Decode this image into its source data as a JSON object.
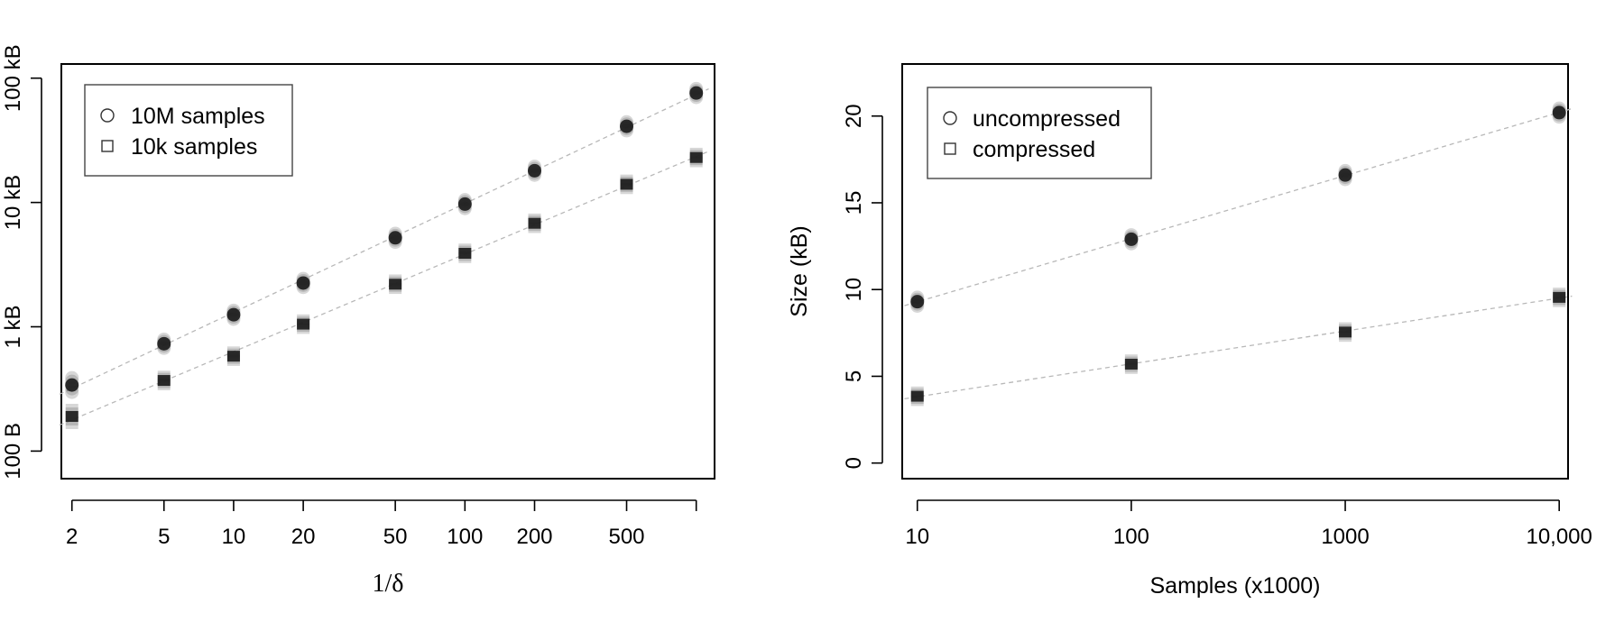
{
  "chart_data": [
    {
      "type": "scatter",
      "title": "",
      "xlabel": "1/δ",
      "ylabel": "",
      "x_scale": "log",
      "y_scale": "log",
      "xlim": [
        1.8,
        1200
      ],
      "ylim": [
        60,
        130000
      ],
      "x_ticks": [
        {
          "value": 2,
          "label": "2"
        },
        {
          "value": 5,
          "label": "5"
        },
        {
          "value": 10,
          "label": "10"
        },
        {
          "value": 20,
          "label": "20"
        },
        {
          "value": 50,
          "label": "50"
        },
        {
          "value": 100,
          "label": "100"
        },
        {
          "value": 200,
          "label": "200"
        },
        {
          "value": 500,
          "label": "500"
        },
        {
          "value": 1000,
          "label": ""
        }
      ],
      "y_ticks": [
        {
          "value": 100,
          "label": "100 B"
        },
        {
          "value": 1000,
          "label": "1 kB"
        },
        {
          "value": 10000,
          "label": "10 kB"
        },
        {
          "value": 100000,
          "label": "100 kB"
        }
      ],
      "legend": {
        "position": "top-left",
        "entries": [
          "10M samples",
          "10k samples"
        ]
      },
      "grid": false,
      "series": [
        {
          "name": "10M samples",
          "marker": "circle",
          "x": [
            2,
            5,
            10,
            20,
            50,
            100,
            200,
            500,
            1000
          ],
          "y": [
            340,
            730,
            1250,
            2250,
            5200,
            9700,
            18000,
            41000,
            76000
          ]
        },
        {
          "name": "10k samples",
          "marker": "square",
          "x": [
            2,
            5,
            10,
            20,
            50,
            100,
            200,
            500,
            1000
          ],
          "y": [
            190,
            370,
            580,
            1050,
            2200,
            3900,
            6800,
            14000,
            23000
          ]
        }
      ]
    },
    {
      "type": "scatter",
      "title": "",
      "xlabel": "Samples (x1000)",
      "ylabel": "Size (kB)",
      "x_scale": "log",
      "y_scale": "linear",
      "xlim": [
        8.5,
        11000
      ],
      "ylim": [
        -0.9,
        23
      ],
      "x_ticks": [
        {
          "value": 10,
          "label": "10"
        },
        {
          "value": 100,
          "label": "100"
        },
        {
          "value": 1000,
          "label": "1000"
        },
        {
          "value": 10000,
          "label": "10,000"
        }
      ],
      "y_ticks": [
        {
          "value": 0,
          "label": "0"
        },
        {
          "value": 5,
          "label": "5"
        },
        {
          "value": 10,
          "label": "10"
        },
        {
          "value": 15,
          "label": "15"
        },
        {
          "value": 20,
          "label": "20"
        }
      ],
      "legend": {
        "position": "top-left",
        "entries": [
          "uncompressed",
          "compressed"
        ]
      },
      "grid": false,
      "series": [
        {
          "name": "uncompressed",
          "marker": "circle",
          "x": [
            10,
            100,
            1000,
            10000
          ],
          "y": [
            9.3,
            12.9,
            16.6,
            20.2
          ]
        },
        {
          "name": "compressed",
          "marker": "square",
          "x": [
            10,
            100,
            1000,
            10000
          ],
          "y": [
            3.85,
            5.7,
            7.55,
            9.55
          ]
        }
      ]
    }
  ]
}
